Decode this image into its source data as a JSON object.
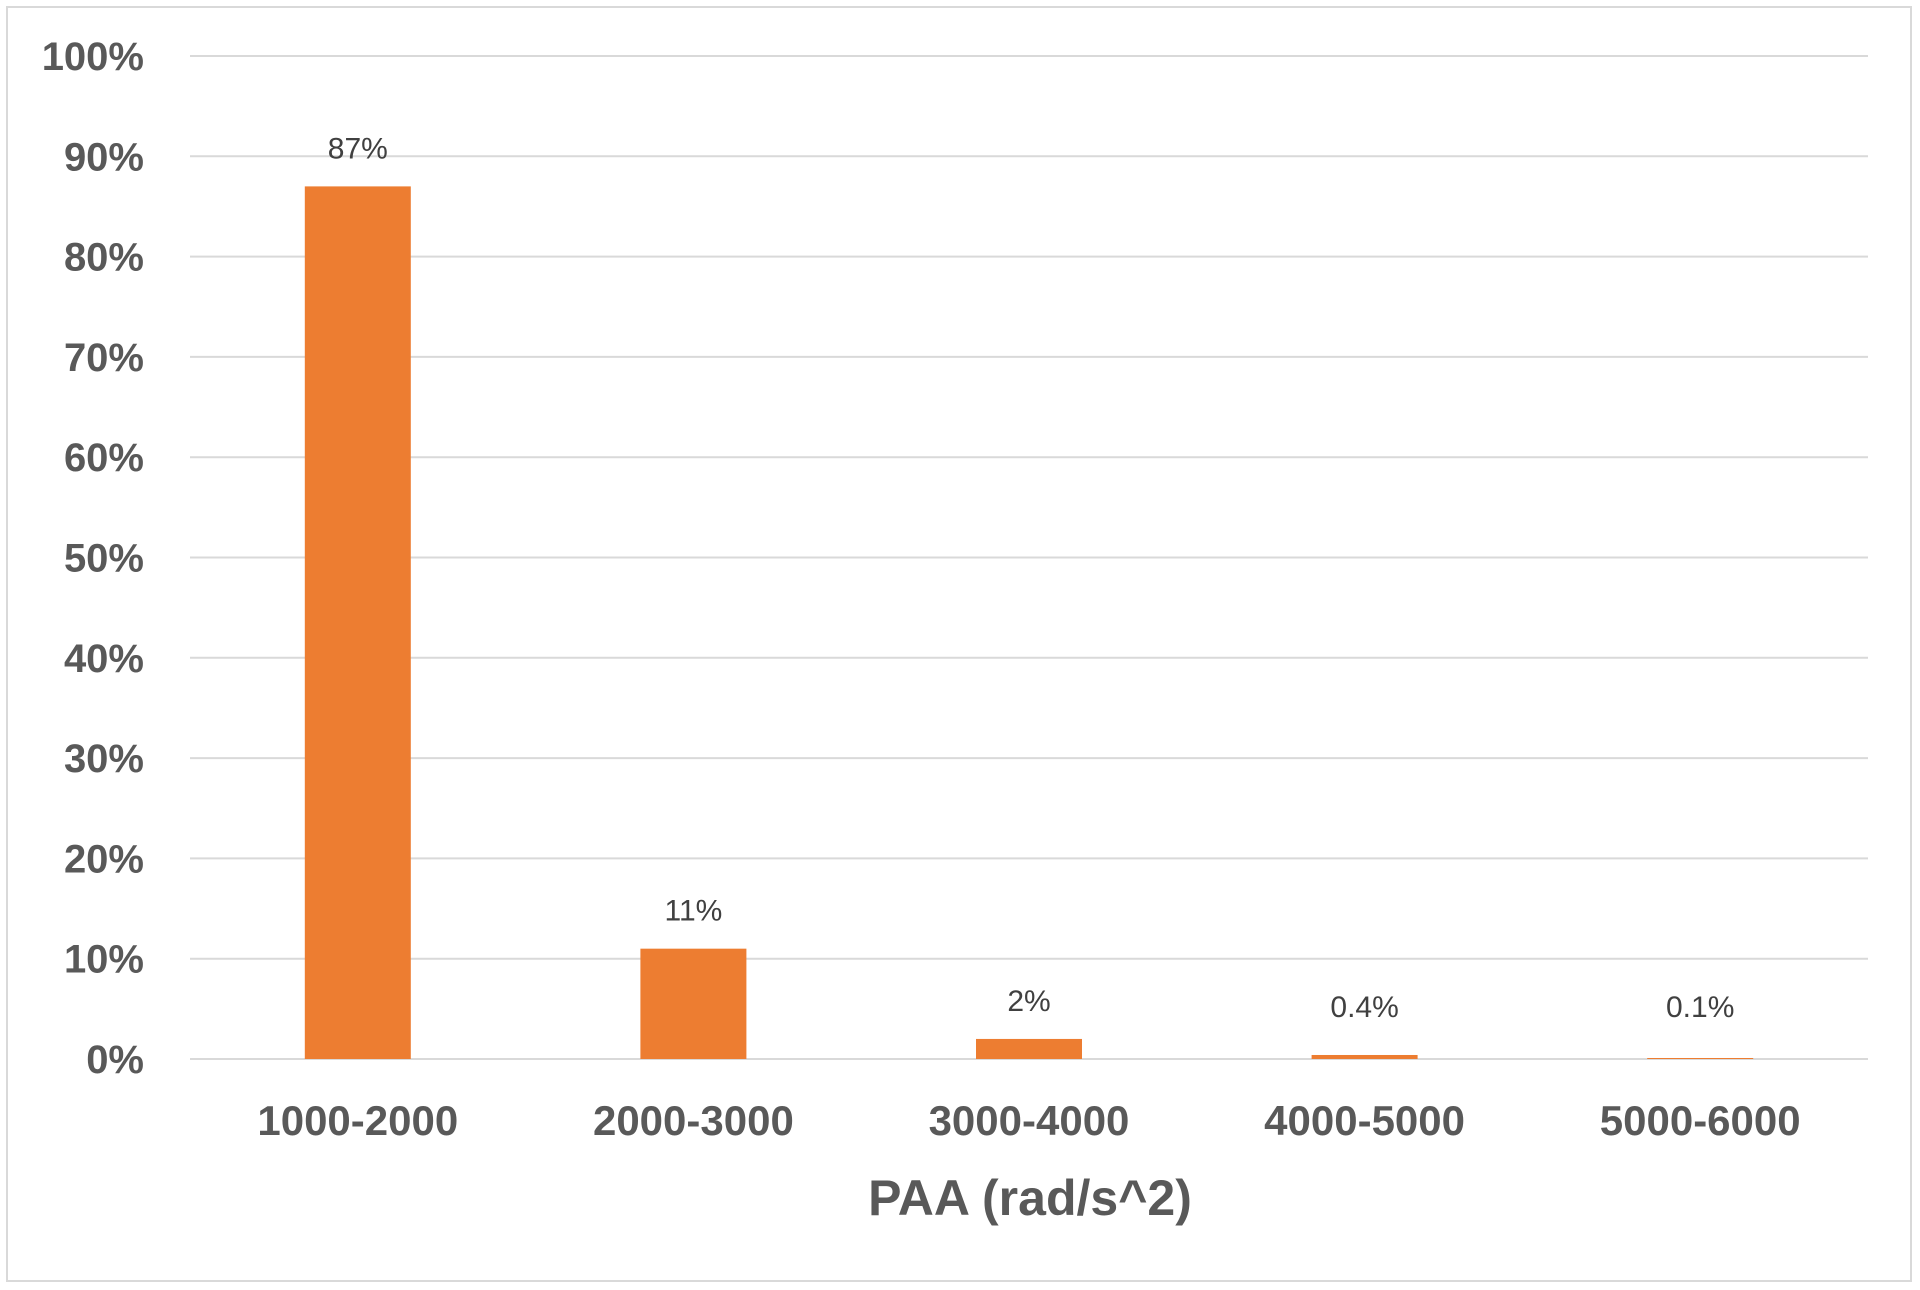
{
  "chart_data": {
    "type": "bar",
    "title": "",
    "xlabel": "PAA (rad/s^2)",
    "ylabel": "",
    "categories": [
      "1000-2000",
      "2000-3000",
      "3000-4000",
      "4000-5000",
      "5000-6000"
    ],
    "values": [
      87,
      11,
      2,
      0.4,
      0.1
    ],
    "data_labels": [
      "87%",
      "11%",
      "2%",
      "0.4%",
      "0.1%"
    ],
    "ylim": [
      0,
      100
    ],
    "yticks": [
      0,
      10,
      20,
      30,
      40,
      50,
      60,
      70,
      80,
      90,
      100
    ],
    "ytick_labels": [
      "0%",
      "10%",
      "20%",
      "30%",
      "40%",
      "50%",
      "60%",
      "70%",
      "80%",
      "90%",
      "100%"
    ],
    "grid": true,
    "legend": "none",
    "colors": {
      "bar": "#ed7d31",
      "grid": "#d9d9d9",
      "text": "#595959"
    }
  }
}
